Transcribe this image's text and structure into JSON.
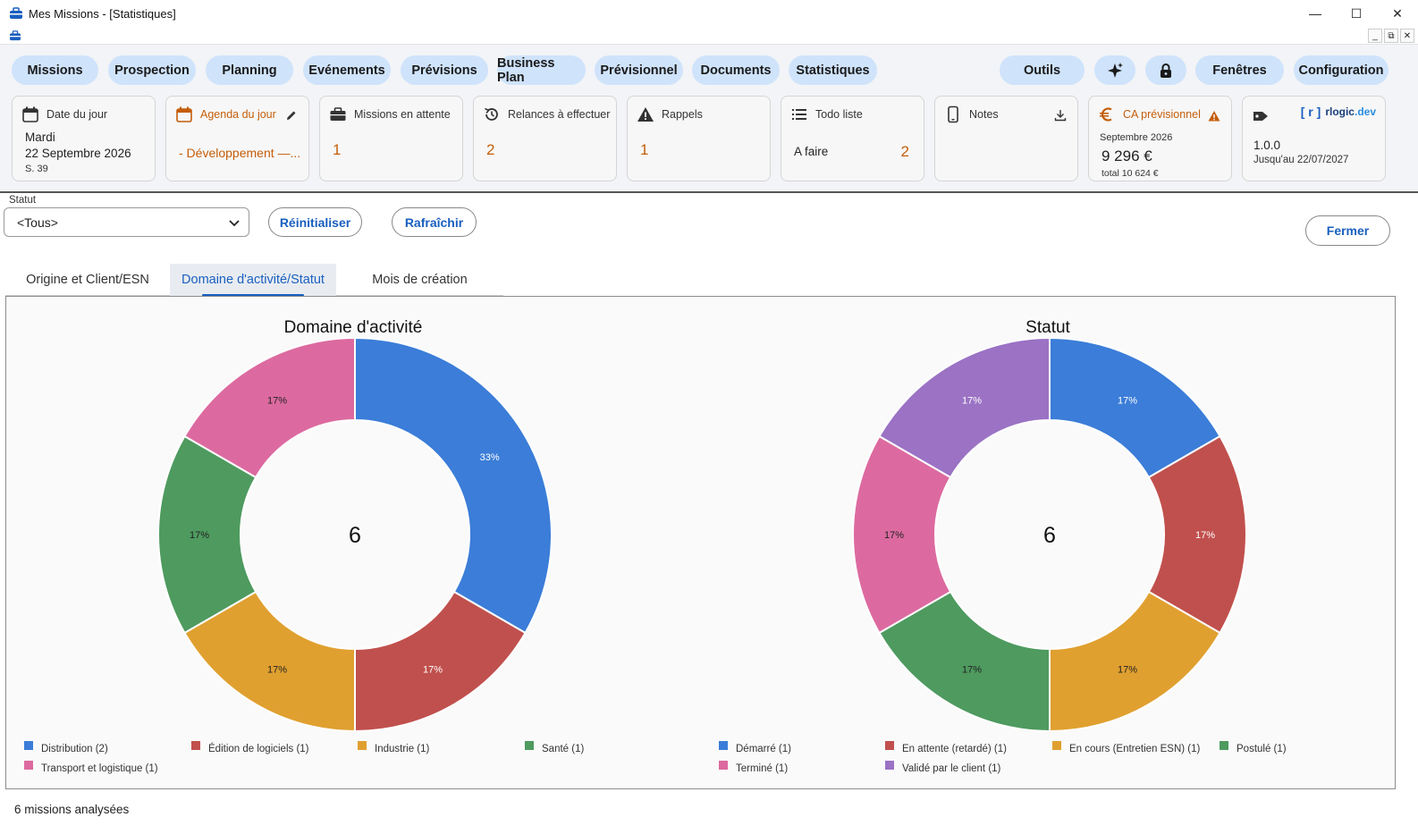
{
  "window": {
    "title": "Mes Missions - [Statistiques]"
  },
  "menu": {
    "missions": "Missions",
    "prospection": "Prospection",
    "planning": "Planning",
    "evenements": "Evénements",
    "previsions": "Prévisions",
    "business_plan": "Business Plan",
    "previsionnel": "Prévisionnel",
    "documents": "Documents",
    "statistiques": "Statistiques",
    "outils": "Outils",
    "fenetres": "Fenêtres",
    "configuration": "Configuration"
  },
  "cards": {
    "date": {
      "label": "Date du jour",
      "day": "Mardi",
      "date": "22 Septembre 2026",
      "week": "S. 39"
    },
    "agenda": {
      "label": "Agenda du jour",
      "value": "- Développement —..."
    },
    "missions": {
      "label": "Missions en attente",
      "value": "1"
    },
    "relances": {
      "label": "Relances à effectuer",
      "value": "2"
    },
    "rappels": {
      "label": "Rappels",
      "value": "1"
    },
    "todo": {
      "label": "Todo liste",
      "item": "A faire",
      "count": "2"
    },
    "notes": {
      "label": "Notes"
    },
    "ca": {
      "label": "CA prévisionnel",
      "month": "Septembre 2026",
      "amount": "9 296 €",
      "total": "total 10 624 €"
    },
    "license": {
      "brand_bracket": "[ r ]",
      "brand": "rlogic",
      "brand_tld": ".dev",
      "version": "1.0.0",
      "until": "Jusqu'au 22/07/2027"
    }
  },
  "filter": {
    "label": "Statut",
    "value": "<Tous>",
    "reset": "Réinitialiser",
    "refresh": "Rafraîchir",
    "close": "Fermer"
  },
  "tabs": {
    "origin": "Origine et Client/ESN",
    "domain": "Domaine d'activité/Statut",
    "month": "Mois de création"
  },
  "chart_data": [
    {
      "type": "pie",
      "title": "Domaine d'activité",
      "center_label": "6",
      "categories": [
        "Distribution (2)",
        "Édition de logiciels (1)",
        "Industrie (1)",
        "Santé (1)",
        "Transport et logistique (1)"
      ],
      "values": [
        2,
        1,
        1,
        1,
        1
      ],
      "labels": [
        "33%",
        "17%",
        "17%",
        "17%",
        "17%"
      ],
      "colors": [
        "#3b7dd8",
        "#c0504d",
        "#e0a030",
        "#4e9a5f",
        "#dc6aa0"
      ]
    },
    {
      "type": "pie",
      "title": "Statut",
      "center_label": "6",
      "categories": [
        "Démarré (1)",
        "En attente (retardé) (1)",
        "En cours (Entretien ESN) (1)",
        "Postulé (1)",
        "Terminé (1)",
        "Validé par le client (1)"
      ],
      "values": [
        1,
        1,
        1,
        1,
        1,
        1
      ],
      "labels": [
        "17%",
        "17%",
        "17%",
        "17%",
        "17%",
        "17%"
      ],
      "colors": [
        "#3b7dd8",
        "#c0504d",
        "#e0a030",
        "#4e9a5f",
        "#dc6aa0",
        "#9b72c4"
      ]
    }
  ],
  "status_bar": {
    "text": "6 missions analysées"
  }
}
